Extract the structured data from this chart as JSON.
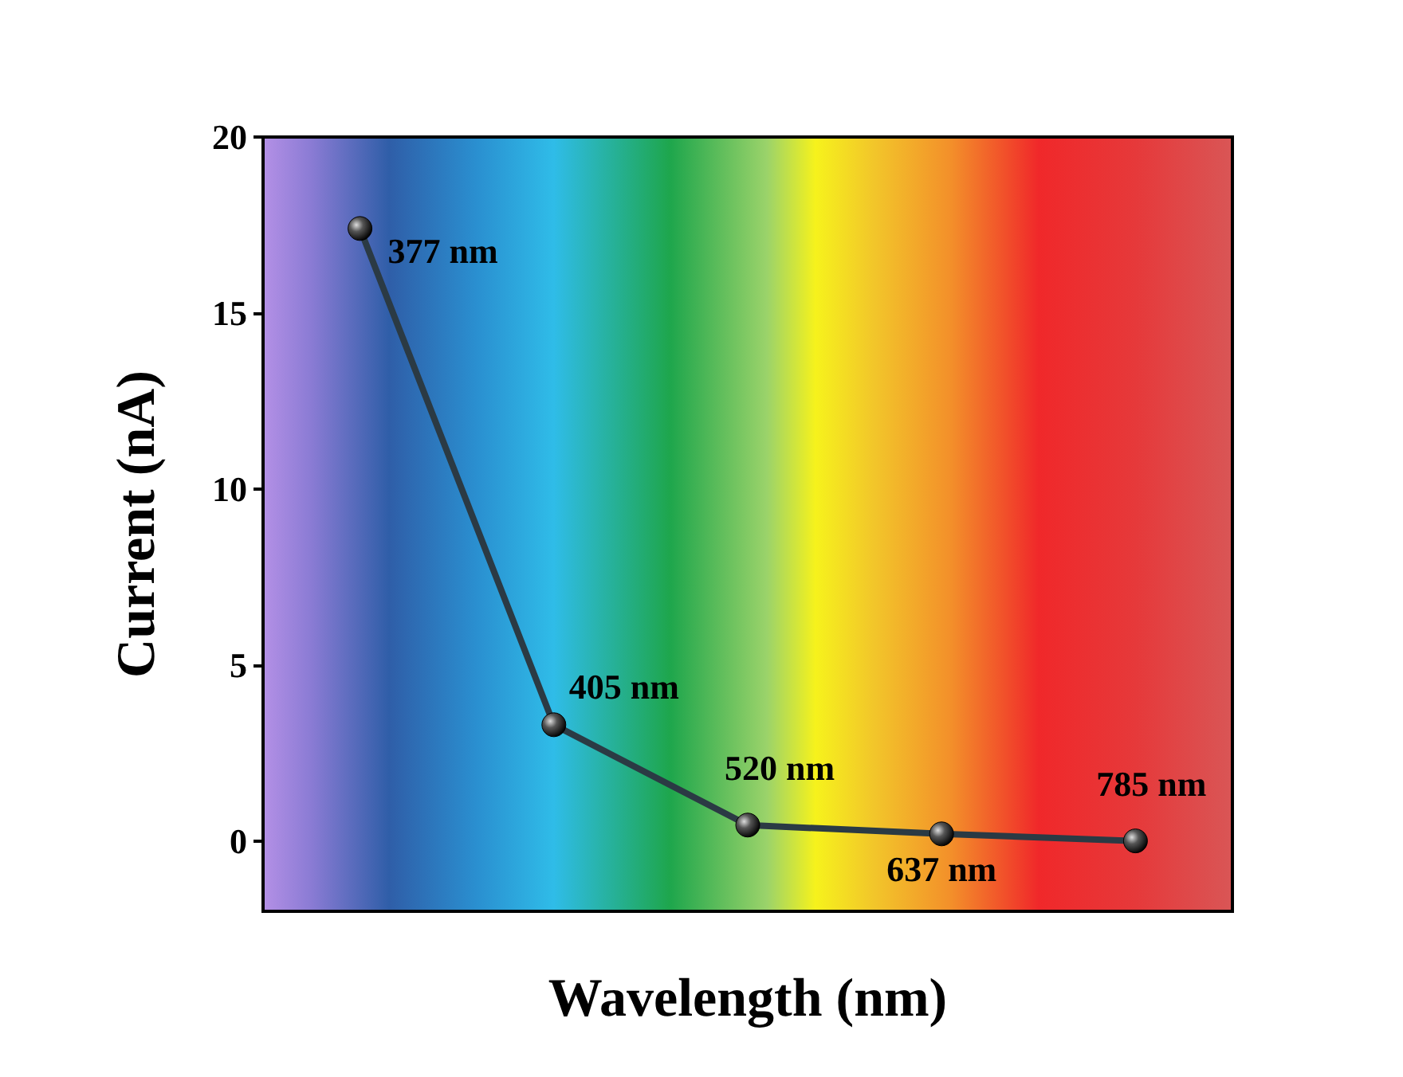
{
  "chart_data": {
    "type": "line",
    "xlabel": "Wavelength (nm)",
    "ylabel": "Current (nA)",
    "categories": [
      null,
      null,
      null,
      null,
      null
    ],
    "series": [
      {
        "color": "#2b3a44",
        "values": [
          17.4,
          3.3,
          0.45,
          0.2,
          0
        ]
      }
    ],
    "ylim": [
      -2,
      20
    ],
    "yticks": [
      0,
      5,
      10,
      15,
      20
    ],
    "tick_labels": "y",
    "marker": "circle",
    "line_style": "solid",
    "grid": false,
    "annotations": [
      "377 nm",
      "405 nm",
      "520 nm",
      "637 nm",
      "785 nm"
    ]
  }
}
